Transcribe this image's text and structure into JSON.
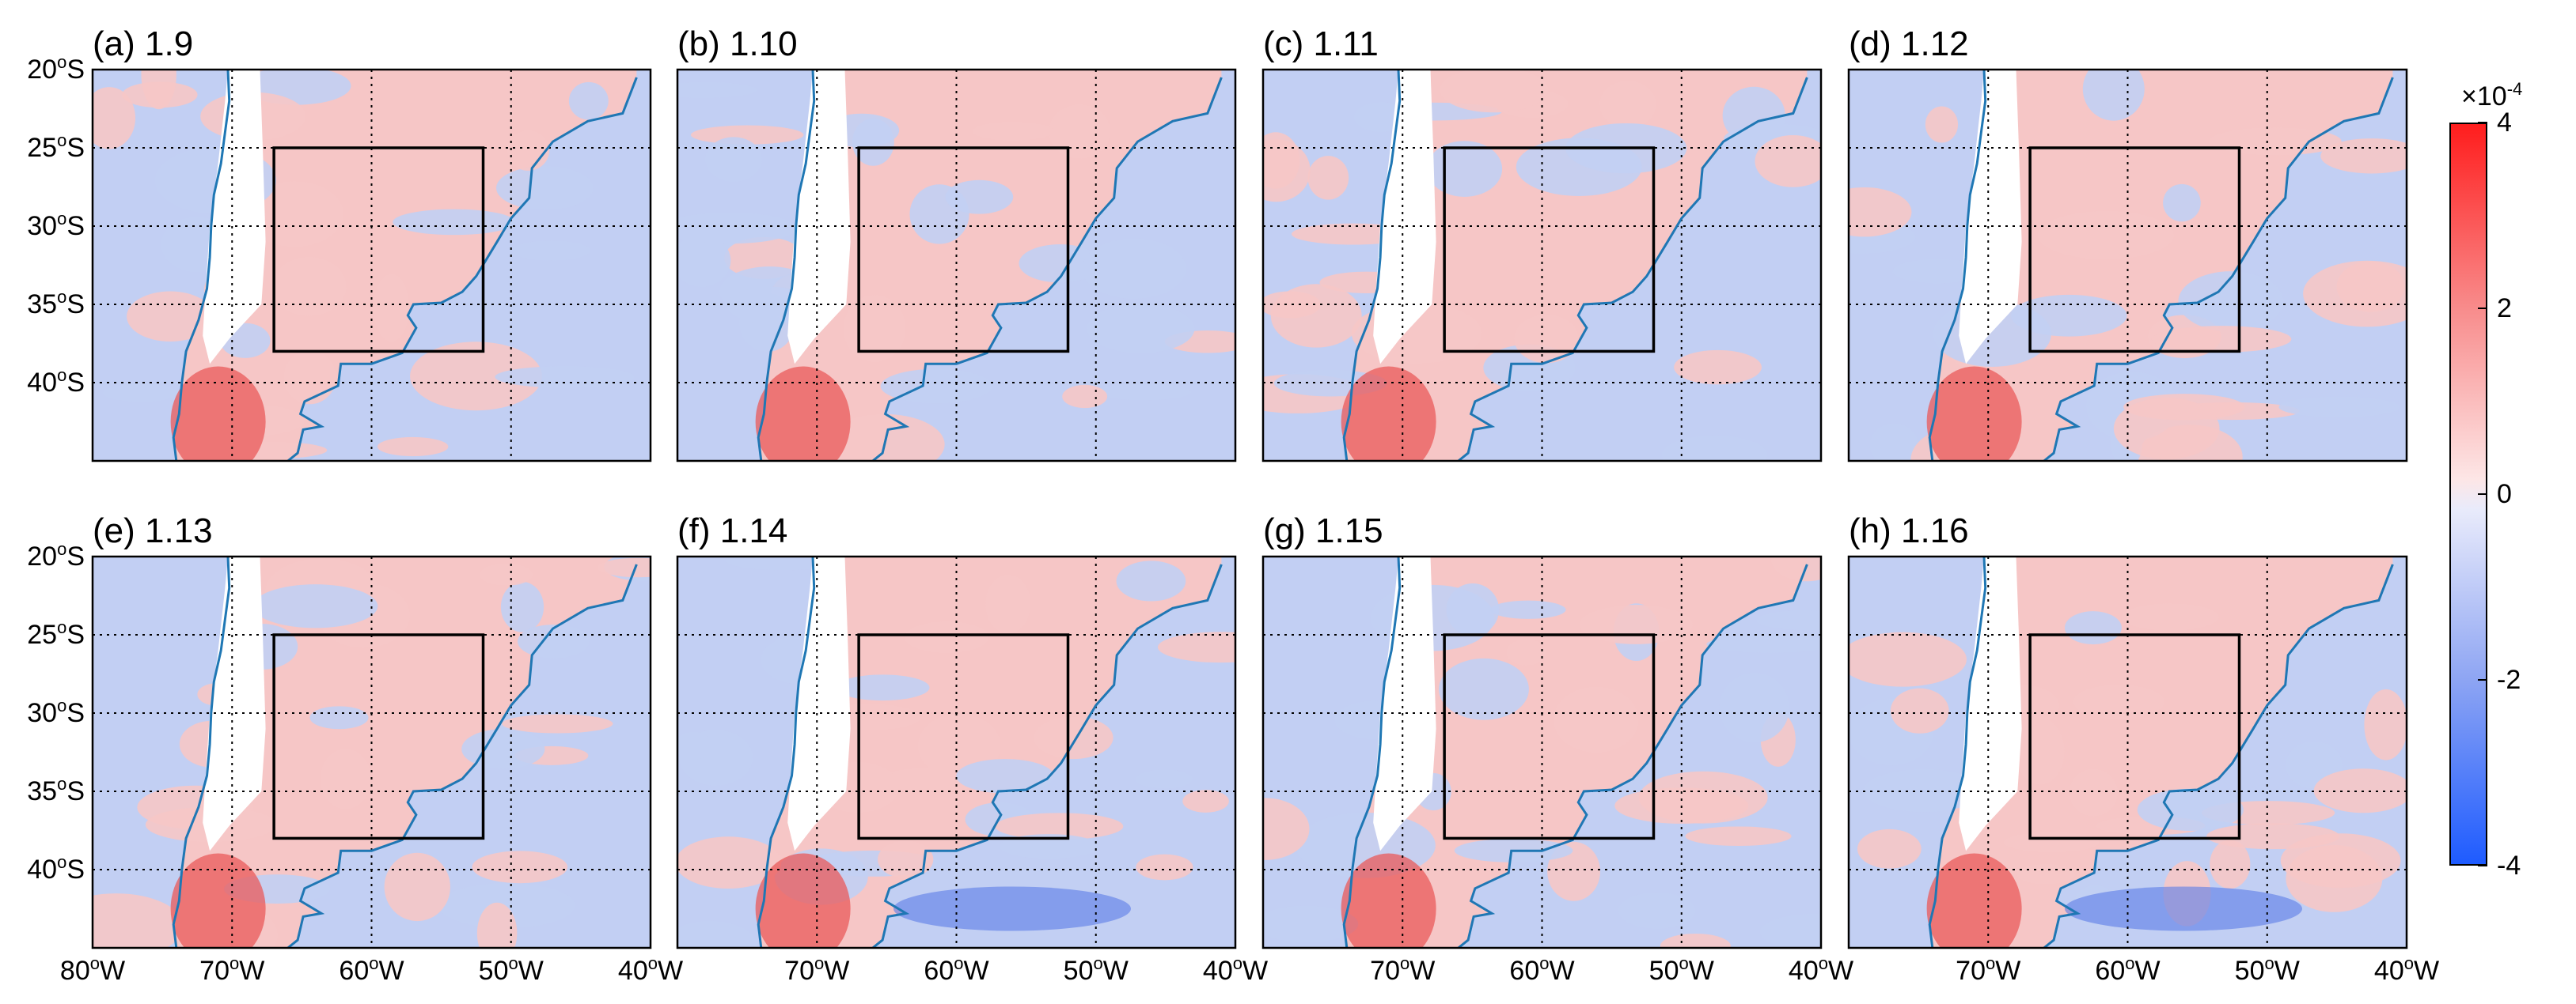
{
  "panels": [
    {
      "label": "(a) 1.9"
    },
    {
      "label": "(b) 1.10"
    },
    {
      "label": "(c) 1.11"
    },
    {
      "label": "(d) 1.12"
    },
    {
      "label": "(e) 1.13"
    },
    {
      "label": "(f) 1.14"
    },
    {
      "label": "(g) 1.15"
    },
    {
      "label": "(h) 1.16"
    }
  ],
  "lat_ticks": [
    {
      "deg": "20",
      "sup": "o",
      "hemi": "S"
    },
    {
      "deg": "25",
      "sup": "o",
      "hemi": "S"
    },
    {
      "deg": "30",
      "sup": "o",
      "hemi": "S"
    },
    {
      "deg": "35",
      "sup": "o",
      "hemi": "S"
    },
    {
      "deg": "40",
      "sup": "o",
      "hemi": "S"
    }
  ],
  "lon_ticks": [
    {
      "deg": "80",
      "sup": "o",
      "hemi": "W"
    },
    {
      "deg": "70",
      "sup": "o",
      "hemi": "W"
    },
    {
      "deg": "60",
      "sup": "o",
      "hemi": "W"
    },
    {
      "deg": "50",
      "sup": "o",
      "hemi": "W"
    },
    {
      "deg": "40",
      "sup": "o",
      "hemi": "W"
    }
  ],
  "colorbar": {
    "exponent_prefix": "×10",
    "exponent": "-4",
    "ticks": [
      "4",
      "2",
      "0",
      "-2",
      "-4"
    ],
    "max_color": "#ff1d1d",
    "min_color": "#1e5bff"
  },
  "map_extent": {
    "lon_min": -80,
    "lon_max": -40,
    "lat_min": -45,
    "lat_max": -20
  },
  "study_box": {
    "lon_min": -67,
    "lon_max": -52,
    "lat_min": -38,
    "lat_max": -25
  },
  "colors": {
    "coast": "#1f77b4",
    "positive": "#f6c6c6",
    "negative": "#c2cff3",
    "strong_positive": "#ea5a5a",
    "strong_negative": "#5a7ce8"
  }
}
